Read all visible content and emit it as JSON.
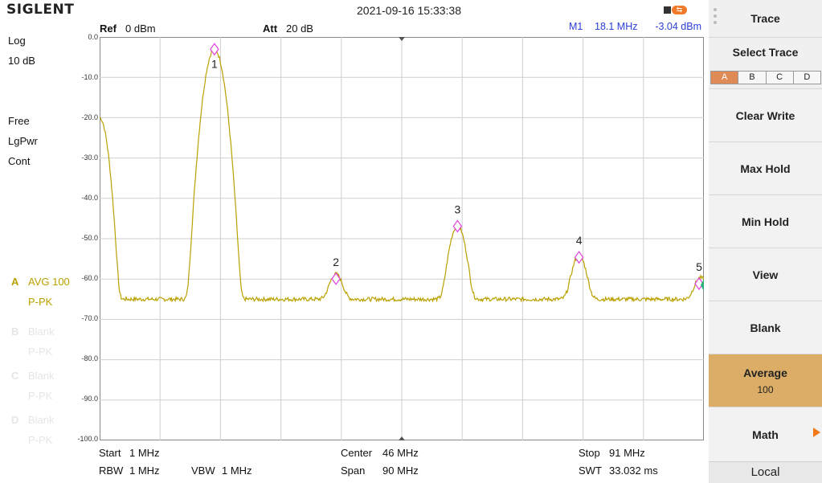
{
  "header": {
    "brand": "SIGLENT",
    "datetime": "2021-09-16 15:33:38"
  },
  "top_info": {
    "ref_label": "Ref",
    "ref_value": "0 dBm",
    "att_label": "Att",
    "att_value": "20 dB"
  },
  "left_info": {
    "scale": "Log",
    "div": "10 dB",
    "trig": "Free",
    "detector": "LgPwr",
    "sweep": "Cont",
    "traces": [
      {
        "id": "A",
        "mode": "AVG 100",
        "det": "P-PK",
        "active": true
      },
      {
        "id": "B",
        "mode": "Blank",
        "det": "P-PK",
        "active": false
      },
      {
        "id": "C",
        "mode": "Blank",
        "det": "P-PK",
        "active": false
      },
      {
        "id": "D",
        "mode": "Blank",
        "det": "P-PK",
        "active": false
      }
    ]
  },
  "markers": [
    {
      "id": "M1",
      "freq": "18.1 MHz",
      "level": "-3.04 dBm"
    },
    {
      "id": "M2",
      "freq": "36.2 MHz",
      "level": "-59.94 dBm"
    },
    {
      "id": "M3",
      "freq": "54.3 MHz",
      "level": "-46.9 dBm"
    },
    {
      "id": "M4",
      "freq": "72.4 MHz",
      "level": "-54.62 dBm"
    },
    {
      "id": "M5",
      "freq": "90.5 MHz",
      "level": "-61.16 dBm"
    }
  ],
  "plot": {
    "y_ticks": [
      "0.0",
      "-10.0",
      "-20.0",
      "-30.0",
      "-40.0",
      "-50.0",
      "-60.0",
      "-70.0",
      "-80.0",
      "-90.0",
      "-100.0"
    ],
    "marker_labels": [
      "1",
      "2",
      "3",
      "4",
      "5"
    ],
    "trace_color": "#b9a000",
    "marker_color": "#e040e0",
    "grid_color": "#cfcfcf"
  },
  "chart_data": {
    "type": "line",
    "x_unit": "MHz",
    "y_unit": "dBm",
    "xlim": [
      1,
      91
    ],
    "ylim": [
      -100,
      0
    ],
    "noise_floor": -65,
    "peaks": [
      {
        "freq": 18.1,
        "level": -3.04
      },
      {
        "freq": 36.2,
        "level": -59.94
      },
      {
        "freq": 54.3,
        "level": -46.9
      },
      {
        "freq": 72.4,
        "level": -54.62
      },
      {
        "freq": 90.5,
        "level": -61.16
      }
    ]
  },
  "bottom_info": {
    "start_label": "Start",
    "start_value": "1 MHz",
    "center_label": "Center",
    "center_value": "46 MHz",
    "stop_label": "Stop",
    "stop_value": "91 MHz",
    "rbw_label": "RBW",
    "rbw_value": "1 MHz",
    "vbw_label": "VBW",
    "vbw_value": "1 MHz",
    "span_label": "Span",
    "span_value": "90 MHz",
    "swt_label": "SWT",
    "swt_value": "33.032 ms"
  },
  "panel": {
    "title": "Trace",
    "select_title": "Select Trace",
    "select_tabs": [
      "A",
      "B",
      "C",
      "D"
    ],
    "buttons": [
      {
        "label": "Clear Write",
        "sub": ""
      },
      {
        "label": "Max Hold",
        "sub": ""
      },
      {
        "label": "Min Hold",
        "sub": ""
      },
      {
        "label": "View",
        "sub": ""
      },
      {
        "label": "Blank",
        "sub": ""
      },
      {
        "label": "Average",
        "sub": "100"
      },
      {
        "label": "Math",
        "sub": ""
      }
    ],
    "local": "Local",
    "accent_color": "#dcad66"
  }
}
